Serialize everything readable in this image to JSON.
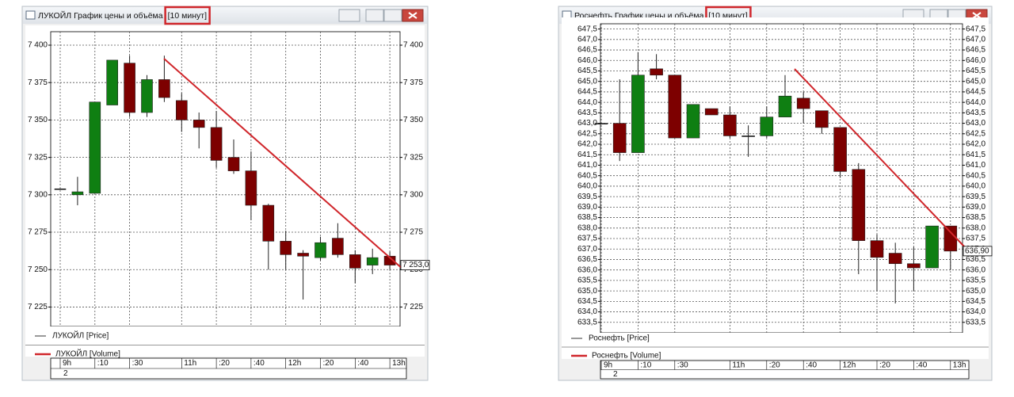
{
  "chart_data": [
    {
      "type": "candlestick",
      "title": "ЛУКОЙЛ График цены и объёма",
      "subtitle": "[10 минут]",
      "categories": [
        "9h",
        null,
        ":10",
        null,
        ":30",
        null,
        null,
        "11h",
        null,
        ":20",
        null,
        ":40",
        null,
        "12h",
        null,
        ":20",
        null,
        ":40",
        null,
        "13h"
      ],
      "open": [
        7304,
        7300,
        7301,
        7360,
        7388,
        7355,
        7377,
        7363,
        7350,
        7345,
        7325,
        7316,
        7293,
        7269,
        7261,
        7258,
        7271,
        7260,
        7253,
        7259
      ],
      "high": [
        7304,
        7312,
        7362,
        7390,
        7393,
        7380,
        7393,
        7368,
        7355,
        7356,
        7337,
        7329,
        7294,
        7276,
        7263,
        7272,
        7281,
        7263,
        7264,
        7262
      ],
      "low": [
        7304,
        7293,
        7301,
        7360,
        7352,
        7352,
        7362,
        7342,
        7331,
        7318,
        7314,
        7283,
        7250,
        7250,
        7230,
        7256,
        7258,
        7241,
        7247,
        7250
      ],
      "close": [
        7304,
        7302,
        7362,
        7390,
        7355,
        7377,
        7365,
        7350,
        7345,
        7323,
        7316,
        7293,
        7269,
        7260,
        7259,
        7268,
        7260,
        7251,
        7258,
        7253
      ],
      "up_color": "#0f7f12",
      "down_color": "#7d0000",
      "series": [
        {
          "name": "ЛУКОЙЛ [Price]",
          "color": "#333333"
        },
        {
          "name": "ЛУКОЙЛ [Volume]",
          "color": "#d0262b"
        }
      ],
      "ylim": [
        7212,
        7409
      ],
      "yticks": [
        {
          "value": 7225,
          "label": "7 225"
        },
        {
          "value": 7250,
          "label": "7 250"
        },
        {
          "value": 7275,
          "label": "7 275"
        },
        {
          "value": 7300,
          "label": "7 300"
        },
        {
          "value": 7325,
          "label": "7 325"
        },
        {
          "value": 7350,
          "label": "7 350"
        },
        {
          "value": 7375,
          "label": "7 375"
        },
        {
          "value": 7400,
          "label": "7 400"
        }
      ],
      "last_price": 7253,
      "last_price_label": "7 253,0",
      "volume": 2,
      "grid": true
    },
    {
      "type": "candlestick",
      "title": "Роснефть График цены и объёма",
      "subtitle": "[10 минут]",
      "categories": [
        "9h",
        null,
        ":10",
        null,
        ":30",
        null,
        null,
        "11h",
        null,
        ":20",
        null,
        ":40",
        null,
        "12h",
        null,
        ":20",
        null,
        ":40",
        null,
        "13h"
      ],
      "open": [
        643.0,
        643.0,
        641.6,
        645.6,
        645.3,
        642.3,
        643.7,
        643.4,
        642.4,
        642.4,
        643.3,
        644.2,
        643.6,
        642.8,
        640.8,
        637.4,
        636.8,
        636.3,
        636.1,
        638.1
      ],
      "high": [
        643.0,
        645.1,
        646.4,
        646.3,
        645.3,
        643.9,
        643.7,
        643.8,
        642.9,
        643.8,
        645.3,
        644.5,
        643.6,
        642.8,
        641.1,
        637.7,
        637.3,
        637.1,
        638.1,
        638.1
      ],
      "low": [
        643.0,
        641.2,
        641.6,
        645.1,
        642.3,
        642.3,
        643.4,
        642.3,
        641.4,
        642.3,
        643.3,
        643.0,
        642.5,
        640.4,
        635.8,
        635.0,
        634.4,
        635.0,
        636.1,
        636.0
      ],
      "close": [
        643.0,
        641.6,
        645.3,
        645.3,
        642.3,
        643.9,
        643.4,
        642.4,
        642.4,
        643.3,
        644.3,
        643.7,
        642.8,
        640.7,
        637.4,
        636.6,
        636.3,
        636.1,
        638.1,
        636.9
      ],
      "up_color": "#0f7f12",
      "down_color": "#7d0000",
      "series": [
        {
          "name": "Роснефть [Price]",
          "color": "#333333"
        },
        {
          "name": "Роснефть [Volume]",
          "color": "#d0262b"
        }
      ],
      "ylim": [
        633.0,
        647.75
      ],
      "yticks": [
        {
          "value": 633.5,
          "label": "633,5"
        },
        {
          "value": 634,
          "label": "634,0"
        },
        {
          "value": 634.5,
          "label": "634,5"
        },
        {
          "value": 635,
          "label": "635,0"
        },
        {
          "value": 635.5,
          "label": "635,5"
        },
        {
          "value": 636,
          "label": "636,0"
        },
        {
          "value": 636.5,
          "label": "636,5"
        },
        {
          "value": 637,
          "label": "637,0"
        },
        {
          "value": 637.5,
          "label": "637,5"
        },
        {
          "value": 638,
          "label": "638,0"
        },
        {
          "value": 638.5,
          "label": "638,5"
        },
        {
          "value": 639,
          "label": "639,0"
        },
        {
          "value": 639.5,
          "label": "639,5"
        },
        {
          "value": 640,
          "label": "640,0"
        },
        {
          "value": 640.5,
          "label": "640,5"
        },
        {
          "value": 641,
          "label": "641,0"
        },
        {
          "value": 641.5,
          "label": "641,5"
        },
        {
          "value": 642,
          "label": "642,0"
        },
        {
          "value": 642.5,
          "label": "642,5"
        },
        {
          "value": 643,
          "label": "643,0"
        },
        {
          "value": 643.5,
          "label": "643,5"
        },
        {
          "value": 644,
          "label": "644,0"
        },
        {
          "value": 644.5,
          "label": "644,5"
        },
        {
          "value": 645,
          "label": "645,0"
        },
        {
          "value": 645.5,
          "label": "645,5"
        },
        {
          "value": 646,
          "label": "646,0"
        },
        {
          "value": 646.5,
          "label": "646,5"
        },
        {
          "value": 647,
          "label": "647,0"
        },
        {
          "value": 647.5,
          "label": "647,5"
        }
      ],
      "last_price": 636.9,
      "last_price_label": "636,90",
      "volume": 2,
      "grid": true
    }
  ]
}
